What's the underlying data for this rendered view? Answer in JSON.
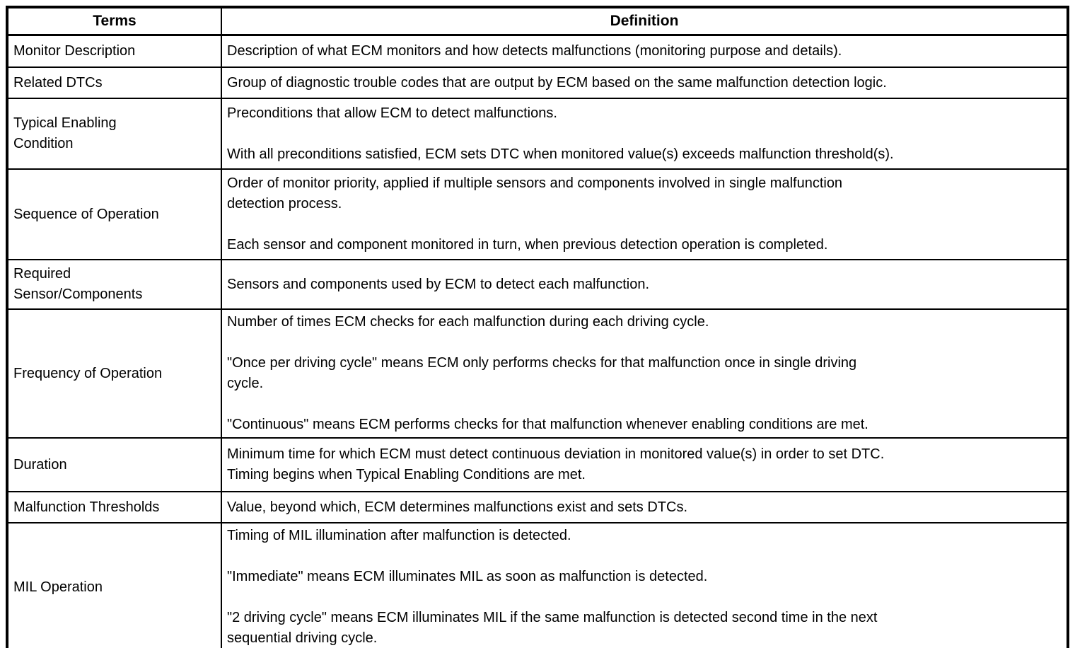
{
  "colors": {
    "border": "#000000",
    "text": "#000000",
    "background": "#ffffff"
  },
  "table": {
    "headers": {
      "terms": "Terms",
      "definition": "Definition"
    },
    "rows": [
      {
        "term": "Monitor Description",
        "definition": "Description of what ECM monitors and how detects malfunctions (monitoring purpose and details)."
      },
      {
        "term": "Related DTCs",
        "definition": "Group of diagnostic trouble codes that are output by ECM based on the same malfunction detection logic."
      },
      {
        "term": "Typical Enabling\nCondition",
        "definition": "Preconditions that allow ECM to detect malfunctions.\n\nWith all preconditions satisfied, ECM sets DTC when monitored value(s) exceeds malfunction threshold(s)."
      },
      {
        "term": "Sequence of Operation",
        "definition": "Order of monitor priority, applied if multiple sensors and components involved in single malfunction\ndetection process.\n\nEach sensor and component monitored in turn, when previous detection operation is completed."
      },
      {
        "term": "Required\nSensor/Components",
        "definition": "Sensors and components used by ECM to detect each malfunction."
      },
      {
        "term": "Frequency of Operation",
        "definition": "Number of times ECM checks for each malfunction during each driving cycle.\n\n\"Once per driving cycle\" means ECM only performs checks for that malfunction once in single driving\ncycle.\n\n\"Continuous\" means ECM performs checks for that malfunction whenever enabling conditions are met."
      },
      {
        "term": "Duration",
        "definition": "Minimum time for which ECM must detect continuous deviation in monitored value(s) in order to set DTC.\nTiming begins when Typical Enabling Conditions are met."
      },
      {
        "term": "Malfunction Thresholds",
        "definition": "Value, beyond which, ECM determines malfunctions exist and sets DTCs."
      },
      {
        "term": "MIL Operation",
        "definition": "Timing of MIL illumination after malfunction is detected.\n\n\"Immediate\" means ECM illuminates MIL as soon as malfunction is detected.\n\n\"2 driving cycle\" means ECM illuminates MIL if the same malfunction is detected second time in the next\nsequential driving cycle."
      }
    ]
  }
}
